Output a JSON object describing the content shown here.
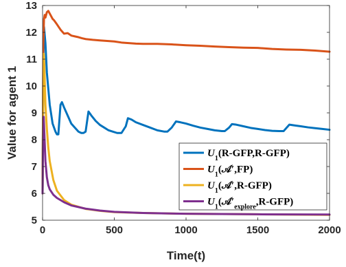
{
  "chart_data": {
    "type": "line",
    "title": "",
    "xlabel": "Time(t)",
    "ylabel": "Value for agent 1",
    "xlim": [
      0,
      2000
    ],
    "ylim": [
      5,
      13
    ],
    "xticks": [
      0,
      500,
      1000,
      1500,
      2000
    ],
    "yticks": [
      5,
      6,
      7,
      8,
      9,
      10,
      11,
      12,
      13
    ],
    "grid": false,
    "legend_position": "lower-right",
    "legend": [
      {
        "base": "U",
        "sub": "1",
        "args": "(R-GFP,R-GFP)"
      },
      {
        "base": "U",
        "sub": "1",
        "args": "(𝒜′,FP)"
      },
      {
        "base": "U",
        "sub": "1",
        "args": "(𝒜′,R-GFP)"
      },
      {
        "base": "U",
        "sub": "1",
        "args_pre": "(𝒜′",
        "args_sub": "explore",
        "args_post": ",R-GFP)"
      }
    ],
    "series": [
      {
        "color": "#0072BD",
        "x": [
          0,
          5,
          10,
          20,
          30,
          50,
          70,
          90,
          100,
          110,
          125,
          135,
          150,
          175,
          200,
          225,
          250,
          270,
          285,
          300,
          320,
          340,
          370,
          400,
          430,
          460,
          490,
          520,
          550,
          580,
          595,
          620,
          650,
          700,
          750,
          800,
          850,
          870,
          900,
          930,
          960,
          1000,
          1050,
          1100,
          1150,
          1200,
          1250,
          1270,
          1300,
          1320,
          1350,
          1400,
          1450,
          1500,
          1550,
          1600,
          1650,
          1680,
          1720,
          1760,
          1800,
          1850,
          1900,
          1950,
          2000
        ],
        "y": [
          6.0,
          10.8,
          12.2,
          11.6,
          10.5,
          9.3,
          8.6,
          8.3,
          8.2,
          8.2,
          9.3,
          9.4,
          9.2,
          8.9,
          8.6,
          8.45,
          8.3,
          8.25,
          8.25,
          8.3,
          9.05,
          8.9,
          8.7,
          8.55,
          8.45,
          8.35,
          8.3,
          8.25,
          8.25,
          8.5,
          8.8,
          8.75,
          8.65,
          8.55,
          8.45,
          8.35,
          8.3,
          8.3,
          8.45,
          8.68,
          8.65,
          8.6,
          8.52,
          8.45,
          8.4,
          8.35,
          8.32,
          8.32,
          8.45,
          8.58,
          8.56,
          8.5,
          8.44,
          8.4,
          8.36,
          8.33,
          8.32,
          8.32,
          8.56,
          8.53,
          8.5,
          8.46,
          8.43,
          8.4,
          8.37
        ]
      },
      {
        "color": "#D95319",
        "x": [
          0,
          5,
          10,
          15,
          20,
          30,
          40,
          50,
          60,
          70,
          80,
          100,
          125,
          150,
          175,
          200,
          225,
          250,
          275,
          300,
          350,
          400,
          450,
          500,
          550,
          600,
          650,
          700,
          800,
          900,
          1000,
          1100,
          1200,
          1300,
          1400,
          1500,
          1600,
          1700,
          1800,
          1900,
          2000
        ],
        "y": [
          6.0,
          11.5,
          12.5,
          12.65,
          12.55,
          12.75,
          12.8,
          12.7,
          12.6,
          12.5,
          12.45,
          12.3,
          12.1,
          11.95,
          11.97,
          11.88,
          11.85,
          11.82,
          11.78,
          11.75,
          11.72,
          11.7,
          11.68,
          11.66,
          11.62,
          11.6,
          11.58,
          11.57,
          11.57,
          11.55,
          11.52,
          11.5,
          11.47,
          11.45,
          11.43,
          11.42,
          11.38,
          11.36,
          11.35,
          11.32,
          11.28
        ]
      },
      {
        "color": "#EDB120",
        "x": [
          0,
          5,
          8,
          12,
          20,
          30,
          40,
          50,
          75,
          100,
          150,
          200,
          300,
          400,
          500,
          700,
          1000,
          1500,
          2000
        ],
        "y": [
          6.0,
          10.4,
          11.2,
          10.8,
          9.3,
          8.4,
          7.7,
          7.2,
          6.5,
          6.1,
          5.75,
          5.58,
          5.42,
          5.35,
          5.3,
          5.27,
          5.24,
          5.22,
          5.2
        ]
      },
      {
        "color": "#7E2F8E",
        "x": [
          0,
          5,
          8,
          12,
          20,
          30,
          40,
          50,
          75,
          100,
          150,
          200,
          300,
          400,
          500,
          700,
          1000,
          1500,
          2000
        ],
        "y": [
          6.0,
          8.8,
          8.85,
          8.3,
          7.2,
          6.6,
          6.3,
          6.15,
          5.95,
          5.83,
          5.67,
          5.55,
          5.43,
          5.36,
          5.31,
          5.27,
          5.24,
          5.22,
          5.21
        ]
      }
    ]
  }
}
